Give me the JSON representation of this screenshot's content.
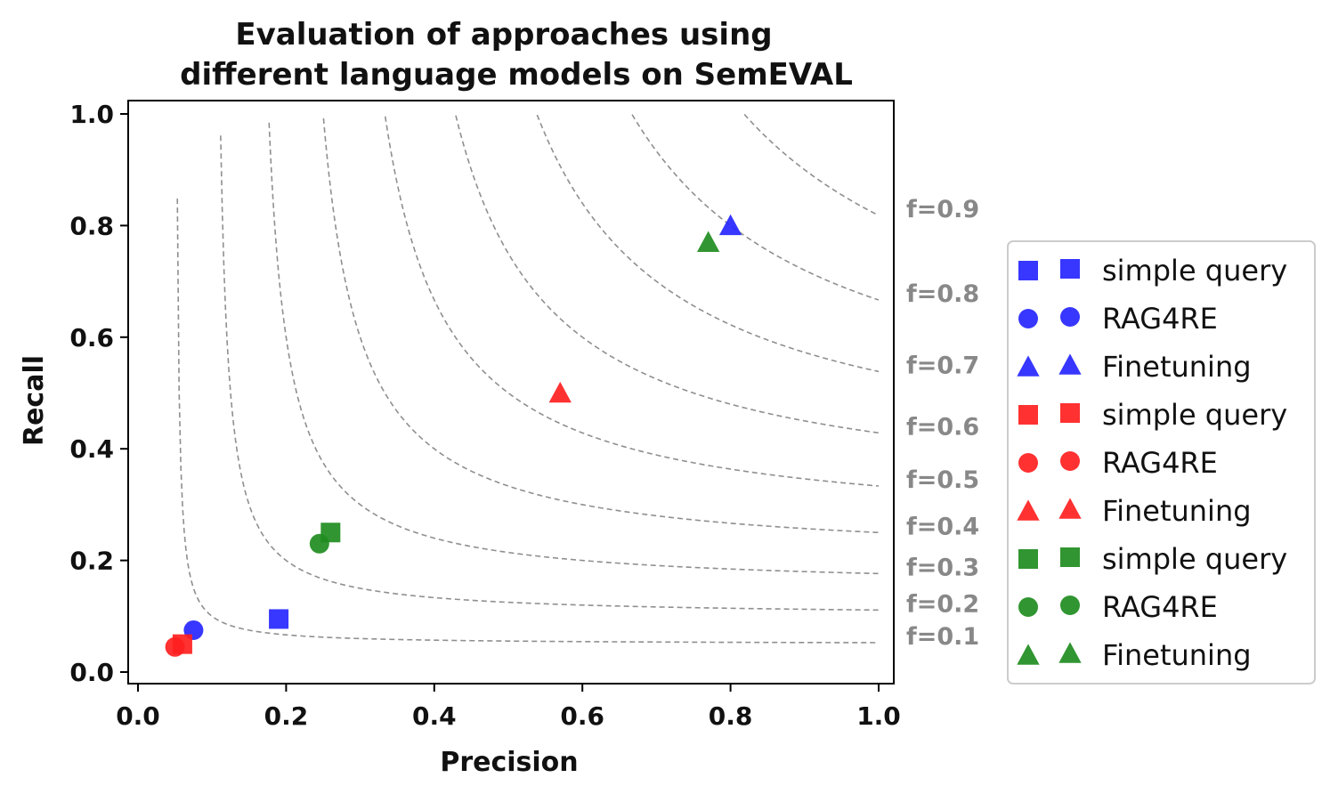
{
  "chart_data": {
    "type": "scatter",
    "title": [
      "Evaluation of approaches using",
      "different language models on SemEVAL"
    ],
    "xlabel": "Precision",
    "ylabel": "Recall",
    "xlim": [
      0.0,
      1.0
    ],
    "ylim": [
      0.0,
      1.0
    ],
    "xticks": [
      "0.0",
      "0.2",
      "0.4",
      "0.6",
      "0.8",
      "1.0"
    ],
    "yticks": [
      "0.0",
      "0.2",
      "0.4",
      "0.6",
      "0.8",
      "1.0"
    ],
    "grid": false,
    "legend_position": "right",
    "iso_f1_curves": [
      {
        "f": 0.1,
        "label": "f=0.1"
      },
      {
        "f": 0.2,
        "label": "f=0.2"
      },
      {
        "f": 0.3,
        "label": "f=0.3"
      },
      {
        "f": 0.4,
        "label": "f=0.4"
      },
      {
        "f": 0.5,
        "label": "f=0.5"
      },
      {
        "f": 0.6,
        "label": "f=0.6"
      },
      {
        "f": 0.7,
        "label": "f=0.7"
      },
      {
        "f": 0.8,
        "label": "f=0.8"
      },
      {
        "f": 0.9,
        "label": "f=0.9"
      }
    ],
    "series": [
      {
        "name": "simple query",
        "color": "#2626ff",
        "marker": "square",
        "x": 0.19,
        "y": 0.095
      },
      {
        "name": "RAG4RE",
        "color": "#2626ff",
        "marker": "circle",
        "x": 0.075,
        "y": 0.075
      },
      {
        "name": "Finetuning",
        "color": "#2626ff",
        "marker": "triangle",
        "x": 0.8,
        "y": 0.8
      },
      {
        "name": "simple query",
        "color": "#ff2020",
        "marker": "square",
        "x": 0.06,
        "y": 0.05
      },
      {
        "name": "RAG4RE",
        "color": "#ff2020",
        "marker": "circle",
        "x": 0.05,
        "y": 0.045
      },
      {
        "name": "Finetuning",
        "color": "#ff2020",
        "marker": "triangle",
        "x": 0.57,
        "y": 0.5
      },
      {
        "name": "simple query",
        "color": "#1f8c1f",
        "marker": "square",
        "x": 0.26,
        "y": 0.25
      },
      {
        "name": "RAG4RE",
        "color": "#1f8c1f",
        "marker": "circle",
        "x": 0.245,
        "y": 0.23
      },
      {
        "name": "Finetuning",
        "color": "#1f8c1f",
        "marker": "triangle",
        "x": 0.77,
        "y": 0.77
      }
    ]
  }
}
